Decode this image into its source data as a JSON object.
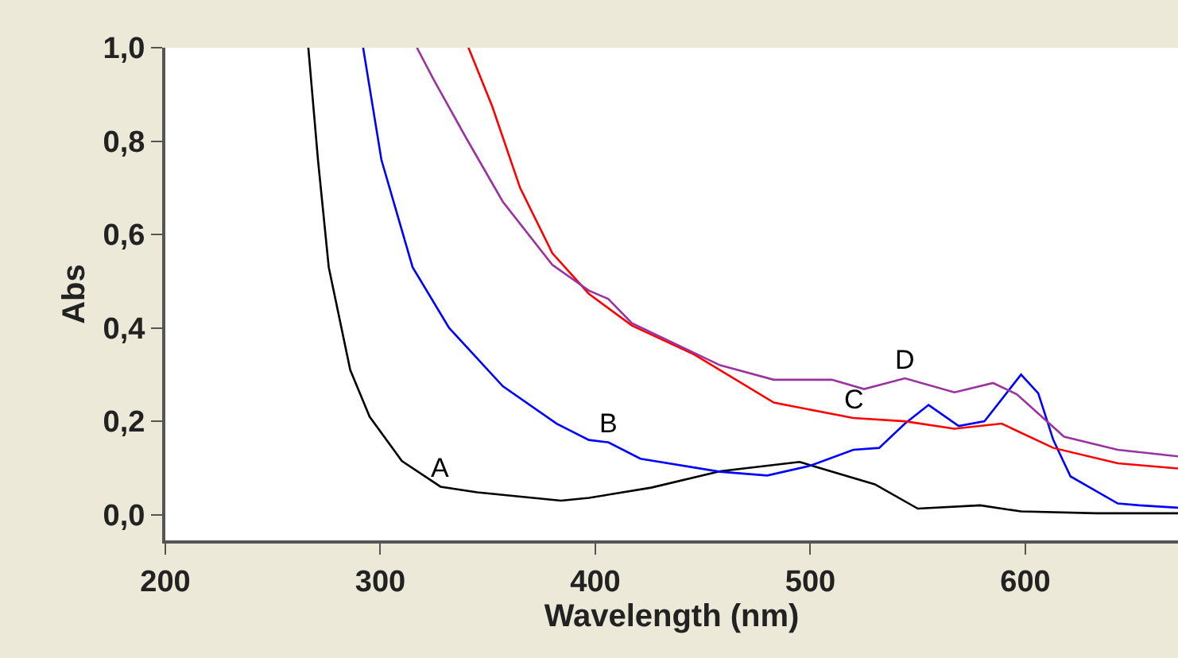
{
  "chart_data": {
    "type": "line",
    "xlabel": "Wavelength (nm)",
    "ylabel": "Abs",
    "xlim": [
      200,
      671
    ],
    "xticks": [
      200,
      300,
      400,
      500,
      600
    ],
    "ylim": [
      -0.055,
      1.0
    ],
    "yticks": [
      {
        "value": 0,
        "label": "0,0"
      },
      {
        "value": 0.2,
        "label": "0,2"
      },
      {
        "value": 0.4,
        "label": "0,4"
      },
      {
        "value": 0.6,
        "label": "0,6"
      },
      {
        "value": 0.8,
        "label": "0,8"
      },
      {
        "value": 1.0,
        "label": "1,0"
      }
    ],
    "grid": false,
    "marker": "none",
    "line_style": "solid",
    "series": [
      {
        "color": "#000000",
        "x": [
          266.5,
          271,
          276,
          286,
          295,
          310,
          328,
          345,
          384,
          397,
          426,
          458,
          495,
          530,
          550,
          579,
          598,
          633,
          671
        ],
        "values": [
          1.0,
          0.76,
          0.53,
          0.31,
          0.21,
          0.115,
          0.06,
          0.048,
          0.03,
          0.036,
          0.058,
          0.093,
          0.113,
          0.065,
          0.013,
          0.02,
          0.007,
          0.003,
          0.003
        ]
      },
      {
        "color": "#0000ff",
        "x": [
          292,
          300.5,
          315,
          332,
          357,
          382,
          397,
          406,
          421,
          458,
          480,
          500,
          520,
          532,
          544,
          555,
          569,
          581,
          598,
          606,
          613,
          621,
          643,
          653,
          671
        ],
        "values": [
          1.0,
          0.76,
          0.53,
          0.4,
          0.275,
          0.195,
          0.16,
          0.155,
          0.12,
          0.092,
          0.084,
          0.105,
          0.139,
          0.143,
          0.195,
          0.235,
          0.19,
          0.2,
          0.3,
          0.26,
          0.16,
          0.082,
          0.024,
          0.02,
          0.015
        ]
      },
      {
        "color": "#ff0000",
        "x": [
          341,
          352,
          365,
          380,
          397,
          417,
          446,
          483,
          520,
          544,
          567,
          589,
          613,
          643,
          671
        ],
        "values": [
          1.0,
          0.875,
          0.7,
          0.56,
          0.473,
          0.405,
          0.343,
          0.24,
          0.207,
          0.2,
          0.184,
          0.195,
          0.143,
          0.11,
          0.099
        ]
      },
      {
        "color": "#9933a0",
        "x": [
          317,
          325,
          340,
          357,
          380,
          397,
          406,
          417,
          458,
          483,
          510,
          525,
          544,
          567,
          585,
          596,
          618,
          643,
          671
        ],
        "values": [
          1.0,
          0.93,
          0.806,
          0.67,
          0.535,
          0.48,
          0.462,
          0.41,
          0.32,
          0.289,
          0.289,
          0.269,
          0.292,
          0.262,
          0.282,
          0.258,
          0.167,
          0.139,
          0.125
        ]
      }
    ],
    "annotations": [
      {
        "text": "A",
        "x": 328,
        "y": 0.06
      },
      {
        "text": "B",
        "x": 406,
        "y": 0.155
      },
      {
        "text": "C",
        "x": 520,
        "y": 0.207
      },
      {
        "text": "D",
        "x": 544,
        "y": 0.292
      }
    ]
  }
}
